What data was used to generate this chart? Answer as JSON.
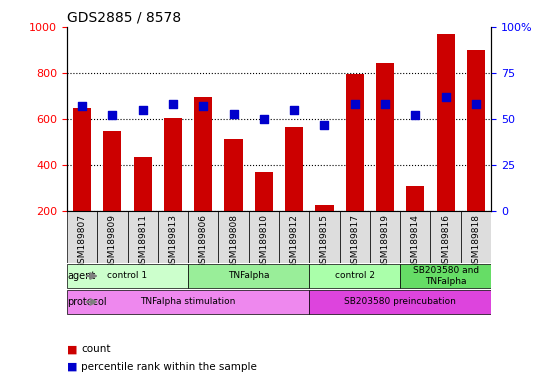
{
  "title": "GDS2885 / 8578",
  "samples": [
    "GSM189807",
    "GSM189809",
    "GSM189811",
    "GSM189813",
    "GSM189806",
    "GSM189808",
    "GSM189810",
    "GSM189812",
    "GSM189815",
    "GSM189817",
    "GSM189819",
    "GSM189814",
    "GSM189816",
    "GSM189818"
  ],
  "counts": [
    650,
    550,
    435,
    605,
    695,
    515,
    370,
    565,
    225,
    795,
    845,
    310,
    970,
    900
  ],
  "percentile_ranks": [
    57,
    52,
    55,
    58,
    57,
    53,
    50,
    55,
    47,
    58,
    58,
    52,
    62,
    58
  ],
  "ylim_left": [
    200,
    1000
  ],
  "ylim_right": [
    0,
    100
  ],
  "yticks_left": [
    200,
    400,
    600,
    800,
    1000
  ],
  "yticks_right": [
    0,
    25,
    50,
    75,
    100
  ],
  "bar_color": "#cc0000",
  "dot_color": "#0000cc",
  "bar_bottom": 200,
  "agent_groups": [
    {
      "label": "control 1",
      "start": 0,
      "end": 4,
      "color": "#ccffcc"
    },
    {
      "label": "TNFalpha",
      "start": 4,
      "end": 8,
      "color": "#99ee99"
    },
    {
      "label": "control 2",
      "start": 8,
      "end": 11,
      "color": "#aaffaa"
    },
    {
      "label": "SB203580 and\nTNFalpha",
      "start": 11,
      "end": 14,
      "color": "#66dd66"
    }
  ],
  "protocol_groups": [
    {
      "label": "TNFalpha stimulation",
      "start": 0,
      "end": 8,
      "color": "#ee88ee"
    },
    {
      "label": "SB203580 preincubation",
      "start": 8,
      "end": 14,
      "color": "#dd44dd"
    }
  ],
  "xlabel_area_color": "#dddddd",
  "legend_count_color": "#cc0000",
  "legend_pct_color": "#0000cc"
}
